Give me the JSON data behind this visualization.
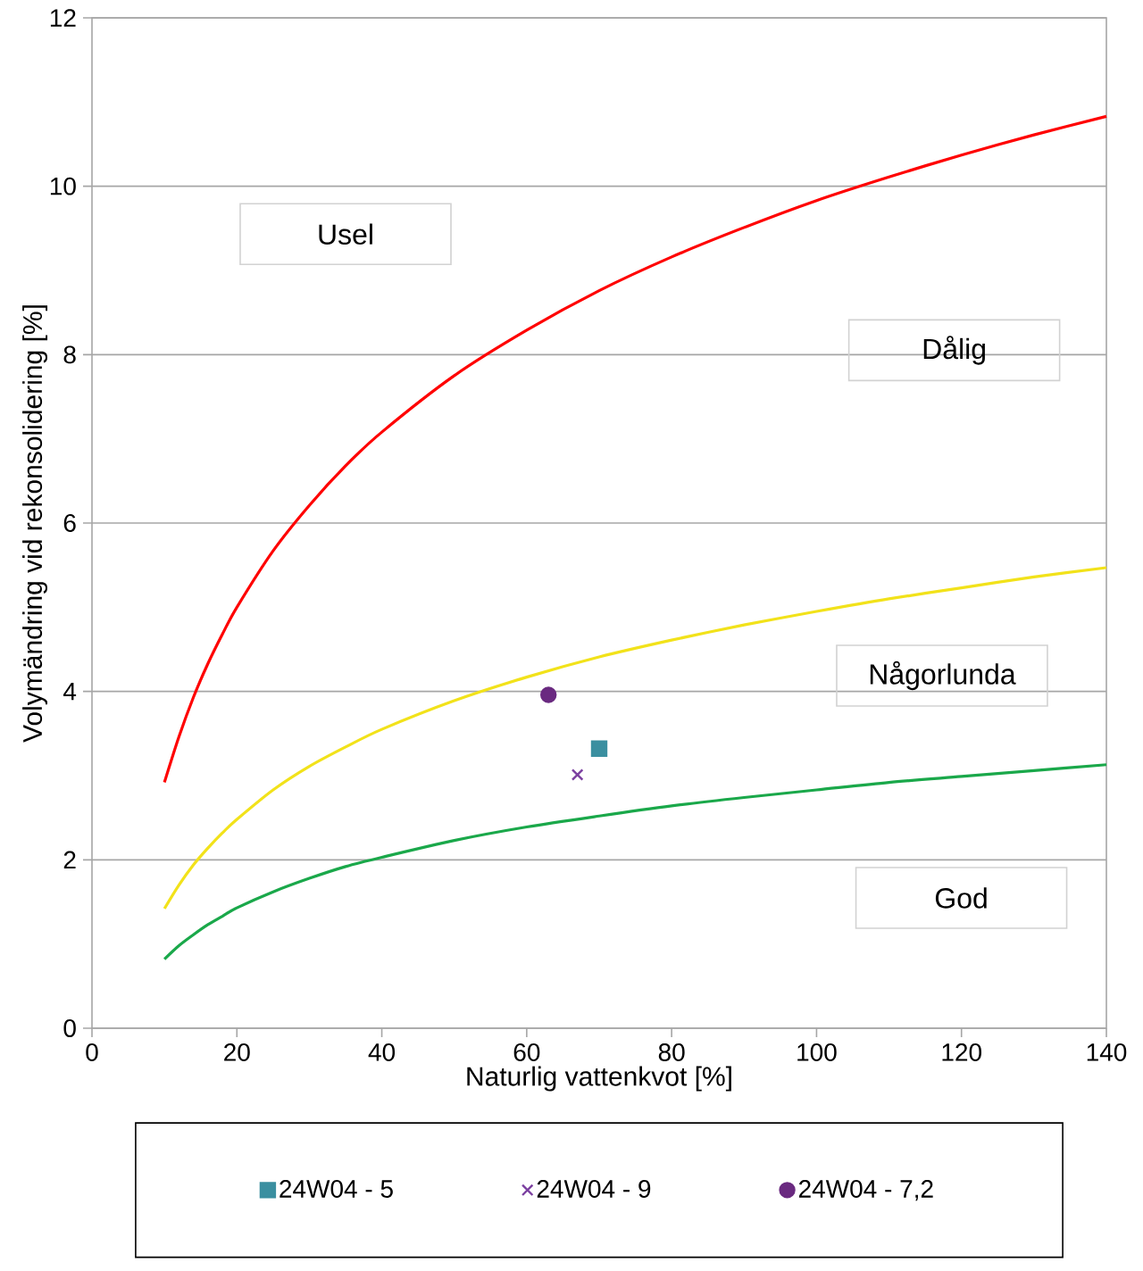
{
  "chart_data": {
    "type": "line",
    "xlabel": "Naturlig vattenkvot [%]",
    "ylabel": "Volymändring vid rekonsolidering [%]",
    "xlim": [
      0,
      140
    ],
    "ylim": [
      0,
      12
    ],
    "xticks": [
      0,
      20,
      40,
      60,
      80,
      100,
      120,
      140
    ],
    "yticks": [
      0,
      2,
      4,
      6,
      8,
      10,
      12
    ],
    "grid": "y",
    "legend": "bottom",
    "series": [
      {
        "color": "#ff0000",
        "x": [
          10,
          12,
          14,
          16,
          18,
          20,
          25,
          30,
          35,
          40,
          50,
          60,
          70,
          80,
          90,
          100,
          110,
          120,
          130,
          140
        ],
        "values": [
          2.92,
          3.46,
          3.93,
          4.33,
          4.68,
          5.0,
          5.67,
          6.21,
          6.68,
          7.08,
          7.75,
          8.29,
          8.76,
          9.16,
          9.51,
          9.83,
          10.11,
          10.37,
          10.61,
          10.83
        ]
      },
      {
        "color": "#f2e21a",
        "x": [
          10,
          12,
          14,
          16,
          18,
          20,
          25,
          30,
          35,
          40,
          50,
          60,
          70,
          80,
          90,
          100,
          110,
          120,
          130,
          140
        ],
        "values": [
          1.42,
          1.7,
          1.94,
          2.14,
          2.32,
          2.48,
          2.83,
          3.11,
          3.34,
          3.55,
          3.89,
          4.17,
          4.41,
          4.61,
          4.79,
          4.95,
          5.1,
          5.23,
          5.36,
          5.47
        ]
      },
      {
        "color": "#1aa84a",
        "x": [
          10,
          12,
          14,
          16,
          18,
          20,
          25,
          30,
          35,
          40,
          50,
          60,
          70,
          80,
          90,
          100,
          110,
          120,
          130,
          140
        ],
        "values": [
          0.82,
          0.98,
          1.11,
          1.23,
          1.33,
          1.43,
          1.62,
          1.78,
          1.92,
          2.03,
          2.23,
          2.39,
          2.52,
          2.64,
          2.74,
          2.83,
          2.92,
          2.99,
          3.06,
          3.13
        ]
      },
      {
        "type": "scatter",
        "name": "24W04 - 5",
        "color": "#3b8fa0",
        "marker": "square",
        "x": [
          70
        ],
        "values": [
          3.32
        ]
      },
      {
        "type": "scatter",
        "name": "24W04 - 9",
        "color": "#7b3fa0",
        "marker": "cross",
        "x": [
          67
        ],
        "values": [
          3.01
        ]
      },
      {
        "type": "scatter",
        "name": "24W04 - 7,2",
        "color": "#6a2a80",
        "marker": "circle",
        "x": [
          63
        ],
        "values": [
          3.96
        ]
      }
    ],
    "annotations": [
      "Usel",
      "Dålig",
      "Någorlunda",
      "God"
    ]
  }
}
